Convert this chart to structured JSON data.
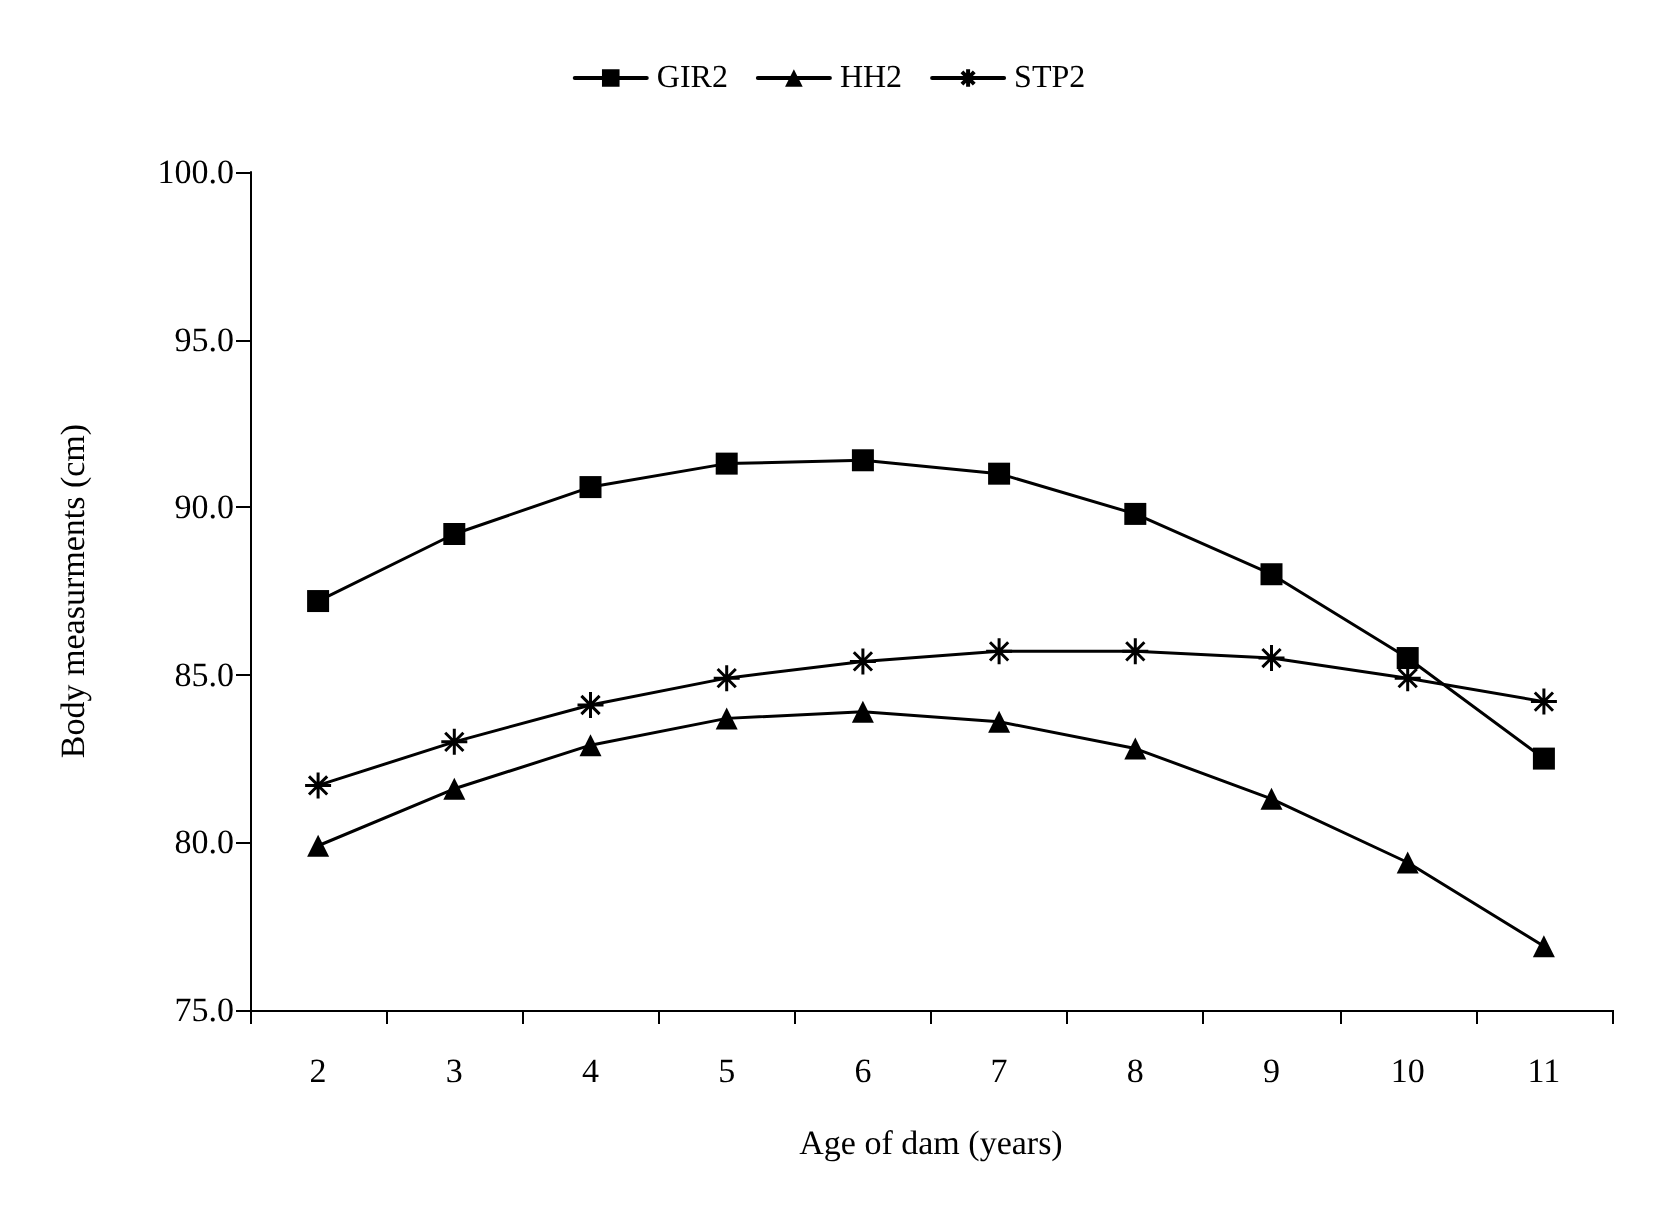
{
  "chart_data": {
    "type": "line",
    "xlabel": "Age of dam (years)",
    "ylabel": "Body measurments (cm)",
    "categories": [
      "2",
      "3",
      "4",
      "5",
      "6",
      "7",
      "8",
      "9",
      "10",
      "11"
    ],
    "series": [
      {
        "name": "GIR2",
        "color": "#000000",
        "marker": "square",
        "values": [
          87.2,
          89.2,
          90.6,
          91.3,
          91.4,
          91.0,
          89.8,
          88.0,
          85.5,
          82.5
        ]
      },
      {
        "name": "HH2",
        "color": "#000000",
        "marker": "triangle",
        "values": [
          79.9,
          81.6,
          82.9,
          83.7,
          83.9,
          83.6,
          82.8,
          81.3,
          79.4,
          76.9
        ]
      },
      {
        "name": "STP2",
        "color": "#000000",
        "marker": "cross",
        "values": [
          81.7,
          83.0,
          84.1,
          84.9,
          85.4,
          85.7,
          85.7,
          85.5,
          84.9,
          84.2
        ]
      }
    ],
    "ylim": [
      75,
      100
    ],
    "yticks": [
      {
        "value": 75,
        "label": "75.0"
      },
      {
        "value": 80,
        "label": "80.0"
      },
      {
        "value": 85,
        "label": "85.0"
      },
      {
        "value": 90,
        "label": "90.0"
      },
      {
        "value": 95,
        "label": "95.0"
      },
      {
        "value": 100,
        "label": "100.0"
      }
    ],
    "grid": false,
    "legend": "top",
    "line_style": "solid"
  }
}
